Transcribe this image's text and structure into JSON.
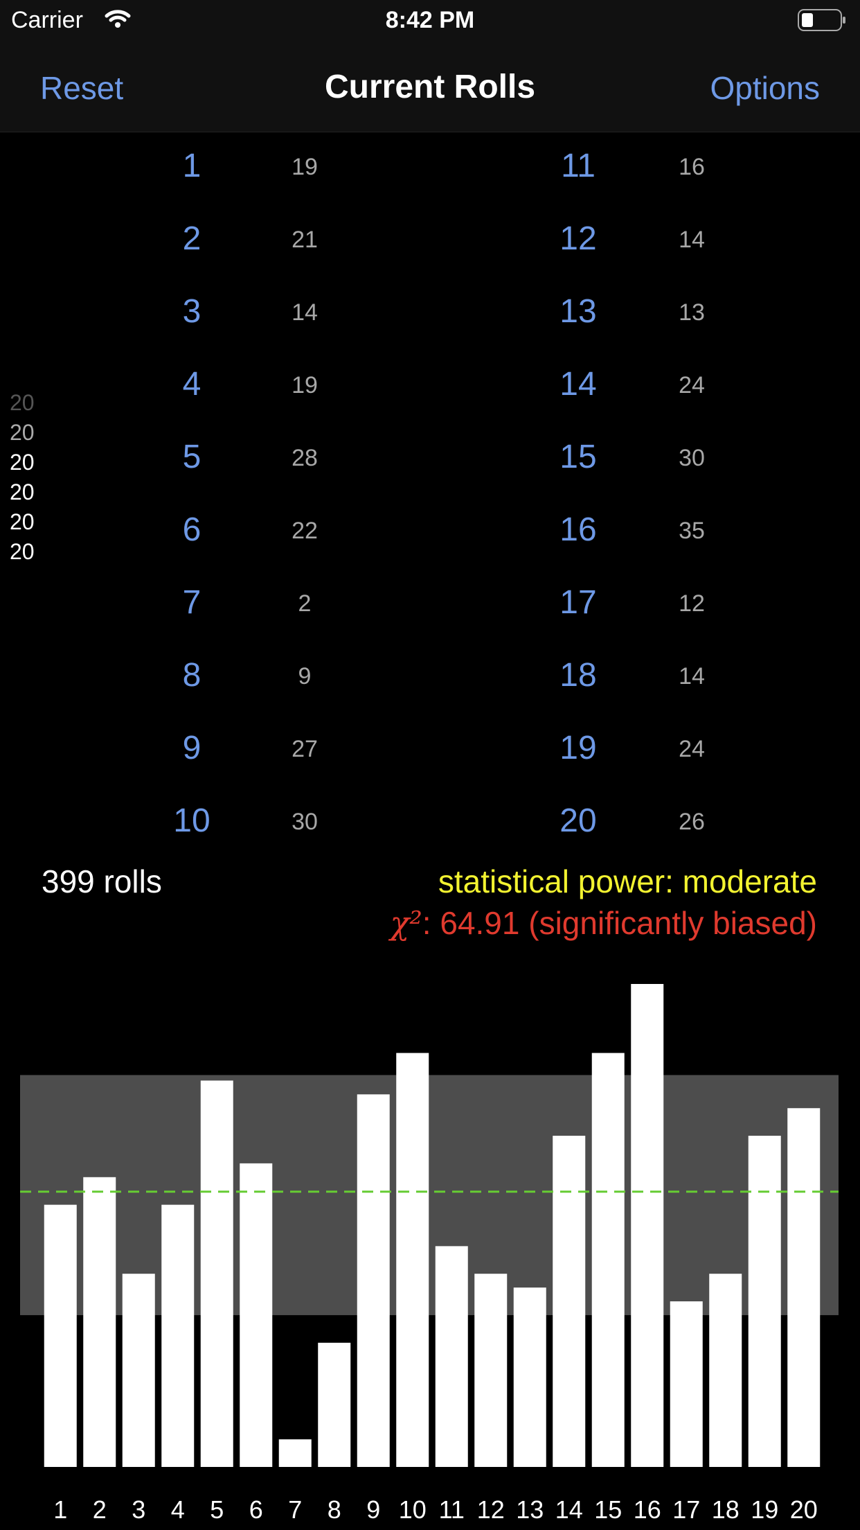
{
  "status_bar": {
    "carrier": "Carrier",
    "time": "8:42 PM"
  },
  "nav": {
    "left_button": "Reset",
    "title": "Current Rolls",
    "right_button": "Options"
  },
  "roll_history": [
    "20",
    "20",
    "20",
    "20",
    "20",
    "20"
  ],
  "counts_left": [
    {
      "face": "1",
      "count": "19"
    },
    {
      "face": "2",
      "count": "21"
    },
    {
      "face": "3",
      "count": "14"
    },
    {
      "face": "4",
      "count": "19"
    },
    {
      "face": "5",
      "count": "28"
    },
    {
      "face": "6",
      "count": "22"
    },
    {
      "face": "7",
      "count": "2"
    },
    {
      "face": "8",
      "count": "9"
    },
    {
      "face": "9",
      "count": "27"
    },
    {
      "face": "10",
      "count": "30"
    }
  ],
  "counts_right": [
    {
      "face": "11",
      "count": "16"
    },
    {
      "face": "12",
      "count": "14"
    },
    {
      "face": "13",
      "count": "13"
    },
    {
      "face": "14",
      "count": "24"
    },
    {
      "face": "15",
      "count": "30"
    },
    {
      "face": "16",
      "count": "35"
    },
    {
      "face": "17",
      "count": "12"
    },
    {
      "face": "18",
      "count": "14"
    },
    {
      "face": "19",
      "count": "24"
    },
    {
      "face": "20",
      "count": "26"
    }
  ],
  "summary": {
    "rolls": "399 rolls",
    "power": "statistical power: moderate",
    "chi_symbol": "χ²",
    "chi_value": ": 64.91 (significantly biased)"
  },
  "colors": {
    "accent": "#6E99E6",
    "power": "#F2F230",
    "chi": "#E03A2E",
    "bar": "#FFFFFF",
    "band": "#4D4D4D",
    "expected_line": "#66CC33"
  },
  "chart_data": {
    "type": "bar",
    "categories": [
      "1",
      "2",
      "3",
      "4",
      "5",
      "6",
      "7",
      "8",
      "9",
      "10",
      "11",
      "12",
      "13",
      "14",
      "15",
      "16",
      "17",
      "18",
      "19",
      "20"
    ],
    "values": [
      19,
      21,
      14,
      19,
      28,
      22,
      2,
      9,
      27,
      30,
      16,
      14,
      13,
      24,
      30,
      35,
      12,
      14,
      24,
      26
    ],
    "expected": 19.95,
    "band": [
      11,
      28.4
    ],
    "ylim": [
      0,
      35
    ],
    "title": "",
    "xlabel": "",
    "ylabel": ""
  }
}
